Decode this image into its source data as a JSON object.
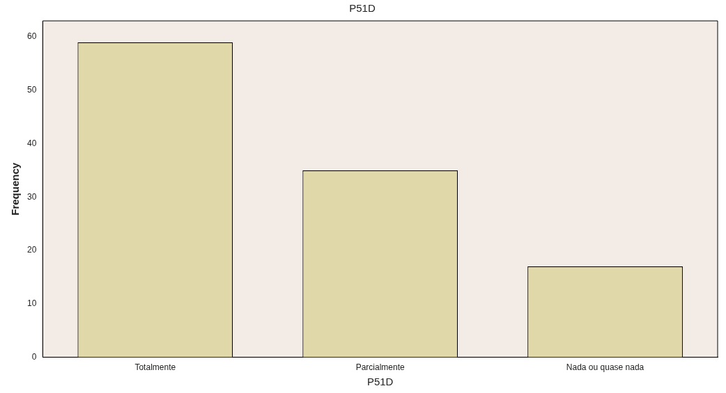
{
  "chart_data": {
    "type": "bar",
    "title": "P51D",
    "xlabel": "P51D",
    "ylabel": "Frequency",
    "categories": [
      "Totalmente",
      "Parcialmente",
      "Nada ou quase nada"
    ],
    "values": [
      59,
      35,
      17
    ],
    "color": "#e0d8a8",
    "ylim": [
      0,
      63
    ],
    "yticks": [
      0,
      10,
      20,
      30,
      40,
      50,
      60
    ],
    "grid": false,
    "legend": false
  }
}
